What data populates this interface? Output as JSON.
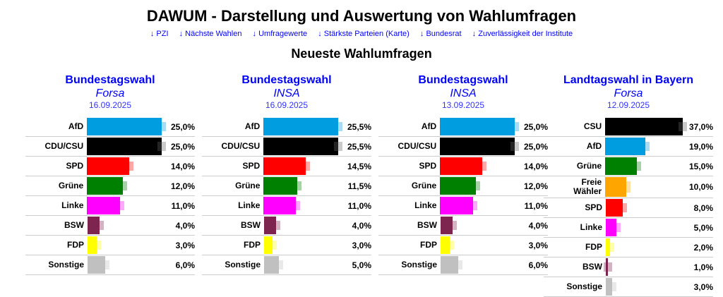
{
  "title": "DAWUM - Darstellung und Auswertung von Wahlumfragen",
  "links": [
    "↓ PZI",
    "↓ Nächste Wahlen",
    "↓ Umfragewerte",
    "↓ Stärkste Parteien (Karte)",
    "↓ Bundesrat",
    "↓ Zuverlässigkeit der Institute"
  ],
  "section_title": "Neueste Wahlumfragen",
  "colors": {
    "AfD": "#009ee0",
    "CDU/CSU": "#000000",
    "CSU": "#000000",
    "SPD": "#ff0000",
    "Grüne": "#008000",
    "Linke": "#ff00ff",
    "BSW": "#7d254f",
    "FDP": "#ffff00",
    "Freie Wähler": "#ffa500",
    "Sonstige": "#c0c0c0"
  },
  "polls": [
    {
      "election": "Bundestagswahl",
      "institute": "Forsa",
      "date": "16.09.2025",
      "max": 25,
      "rows": [
        {
          "party": "AfD",
          "value": 25,
          "label": "25,0%"
        },
        {
          "party": "CDU/CSU",
          "value": 25,
          "label": "25,0%"
        },
        {
          "party": "SPD",
          "value": 14,
          "label": "14,0%"
        },
        {
          "party": "Grüne",
          "value": 12,
          "label": "12,0%"
        },
        {
          "party": "Linke",
          "value": 11,
          "label": "11,0%"
        },
        {
          "party": "BSW",
          "value": 4,
          "label": "4,0%"
        },
        {
          "party": "FDP",
          "value": 3,
          "label": "3,0%"
        },
        {
          "party": "Sonstige",
          "value": 6,
          "label": "6,0%"
        }
      ]
    },
    {
      "election": "Bundestagswahl",
      "institute": "INSA",
      "date": "16.09.2025",
      "max": 25.5,
      "rows": [
        {
          "party": "AfD",
          "value": 25.5,
          "label": "25,5%"
        },
        {
          "party": "CDU/CSU",
          "value": 25.5,
          "label": "25,5%"
        },
        {
          "party": "SPD",
          "value": 14.5,
          "label": "14,5%"
        },
        {
          "party": "Grüne",
          "value": 11.5,
          "label": "11,5%"
        },
        {
          "party": "Linke",
          "value": 11,
          "label": "11,0%"
        },
        {
          "party": "BSW",
          "value": 4,
          "label": "4,0%"
        },
        {
          "party": "FDP",
          "value": 3,
          "label": "3,0%"
        },
        {
          "party": "Sonstige",
          "value": 5,
          "label": "5,0%"
        }
      ]
    },
    {
      "election": "Bundestagswahl",
      "institute": "INSA",
      "date": "13.09.2025",
      "max": 25,
      "rows": [
        {
          "party": "AfD",
          "value": 25,
          "label": "25,0%"
        },
        {
          "party": "CDU/CSU",
          "value": 25,
          "label": "25,0%"
        },
        {
          "party": "SPD",
          "value": 14,
          "label": "14,0%"
        },
        {
          "party": "Grüne",
          "value": 12,
          "label": "12,0%"
        },
        {
          "party": "Linke",
          "value": 11,
          "label": "11,0%"
        },
        {
          "party": "BSW",
          "value": 4,
          "label": "4,0%"
        },
        {
          "party": "FDP",
          "value": 3,
          "label": "3,0%"
        },
        {
          "party": "Sonstige",
          "value": 6,
          "label": "6,0%"
        }
      ]
    },
    {
      "election": "Landtagswahl in Bayern",
      "institute": "Forsa",
      "date": "12.09.2025",
      "max": 37,
      "rows": [
        {
          "party": "CSU",
          "value": 37,
          "label": "37,0%"
        },
        {
          "party": "AfD",
          "value": 19,
          "label": "19,0%"
        },
        {
          "party": "Grüne",
          "value": 15,
          "label": "15,0%"
        },
        {
          "party": "Freie Wähler",
          "value": 10,
          "label": "10,0%"
        },
        {
          "party": "SPD",
          "value": 8,
          "label": "8,0%"
        },
        {
          "party": "Linke",
          "value": 5,
          "label": "5,0%"
        },
        {
          "party": "FDP",
          "value": 2,
          "label": "2,0%"
        },
        {
          "party": "BSW",
          "value": 1,
          "label": "1,0%"
        },
        {
          "party": "Sonstige",
          "value": 3,
          "label": "3,0%"
        }
      ]
    }
  ]
}
